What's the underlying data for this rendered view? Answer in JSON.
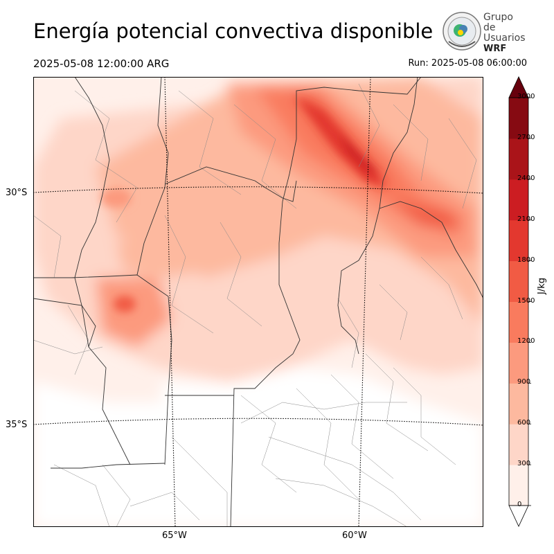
{
  "title": "Energía potencial convectiva disponible",
  "valid_time": "2025-05-08 12:00:00 ARG",
  "run_time": "Run: 2025-05-08 06:00:00",
  "logo": {
    "line1": "Grupo de",
    "line2": "Usuarios",
    "line3": "WRF"
  },
  "lat_labels": [
    "30°S",
    "35°S"
  ],
  "lon_labels": [
    "65°W",
    "60°W"
  ],
  "colorbar": {
    "unit": "J/kg",
    "ticks": [
      "0",
      "300",
      "600",
      "900",
      "1200",
      "1500",
      "1800",
      "2100",
      "2400",
      "2700",
      "3000"
    ],
    "colors": [
      "#fff0ea",
      "#fed6c8",
      "#fdb99f",
      "#fc9a7e",
      "#f97b5e",
      "#f15b44",
      "#e3382f",
      "#cc1d22",
      "#aa1419",
      "#860a12"
    ]
  }
}
